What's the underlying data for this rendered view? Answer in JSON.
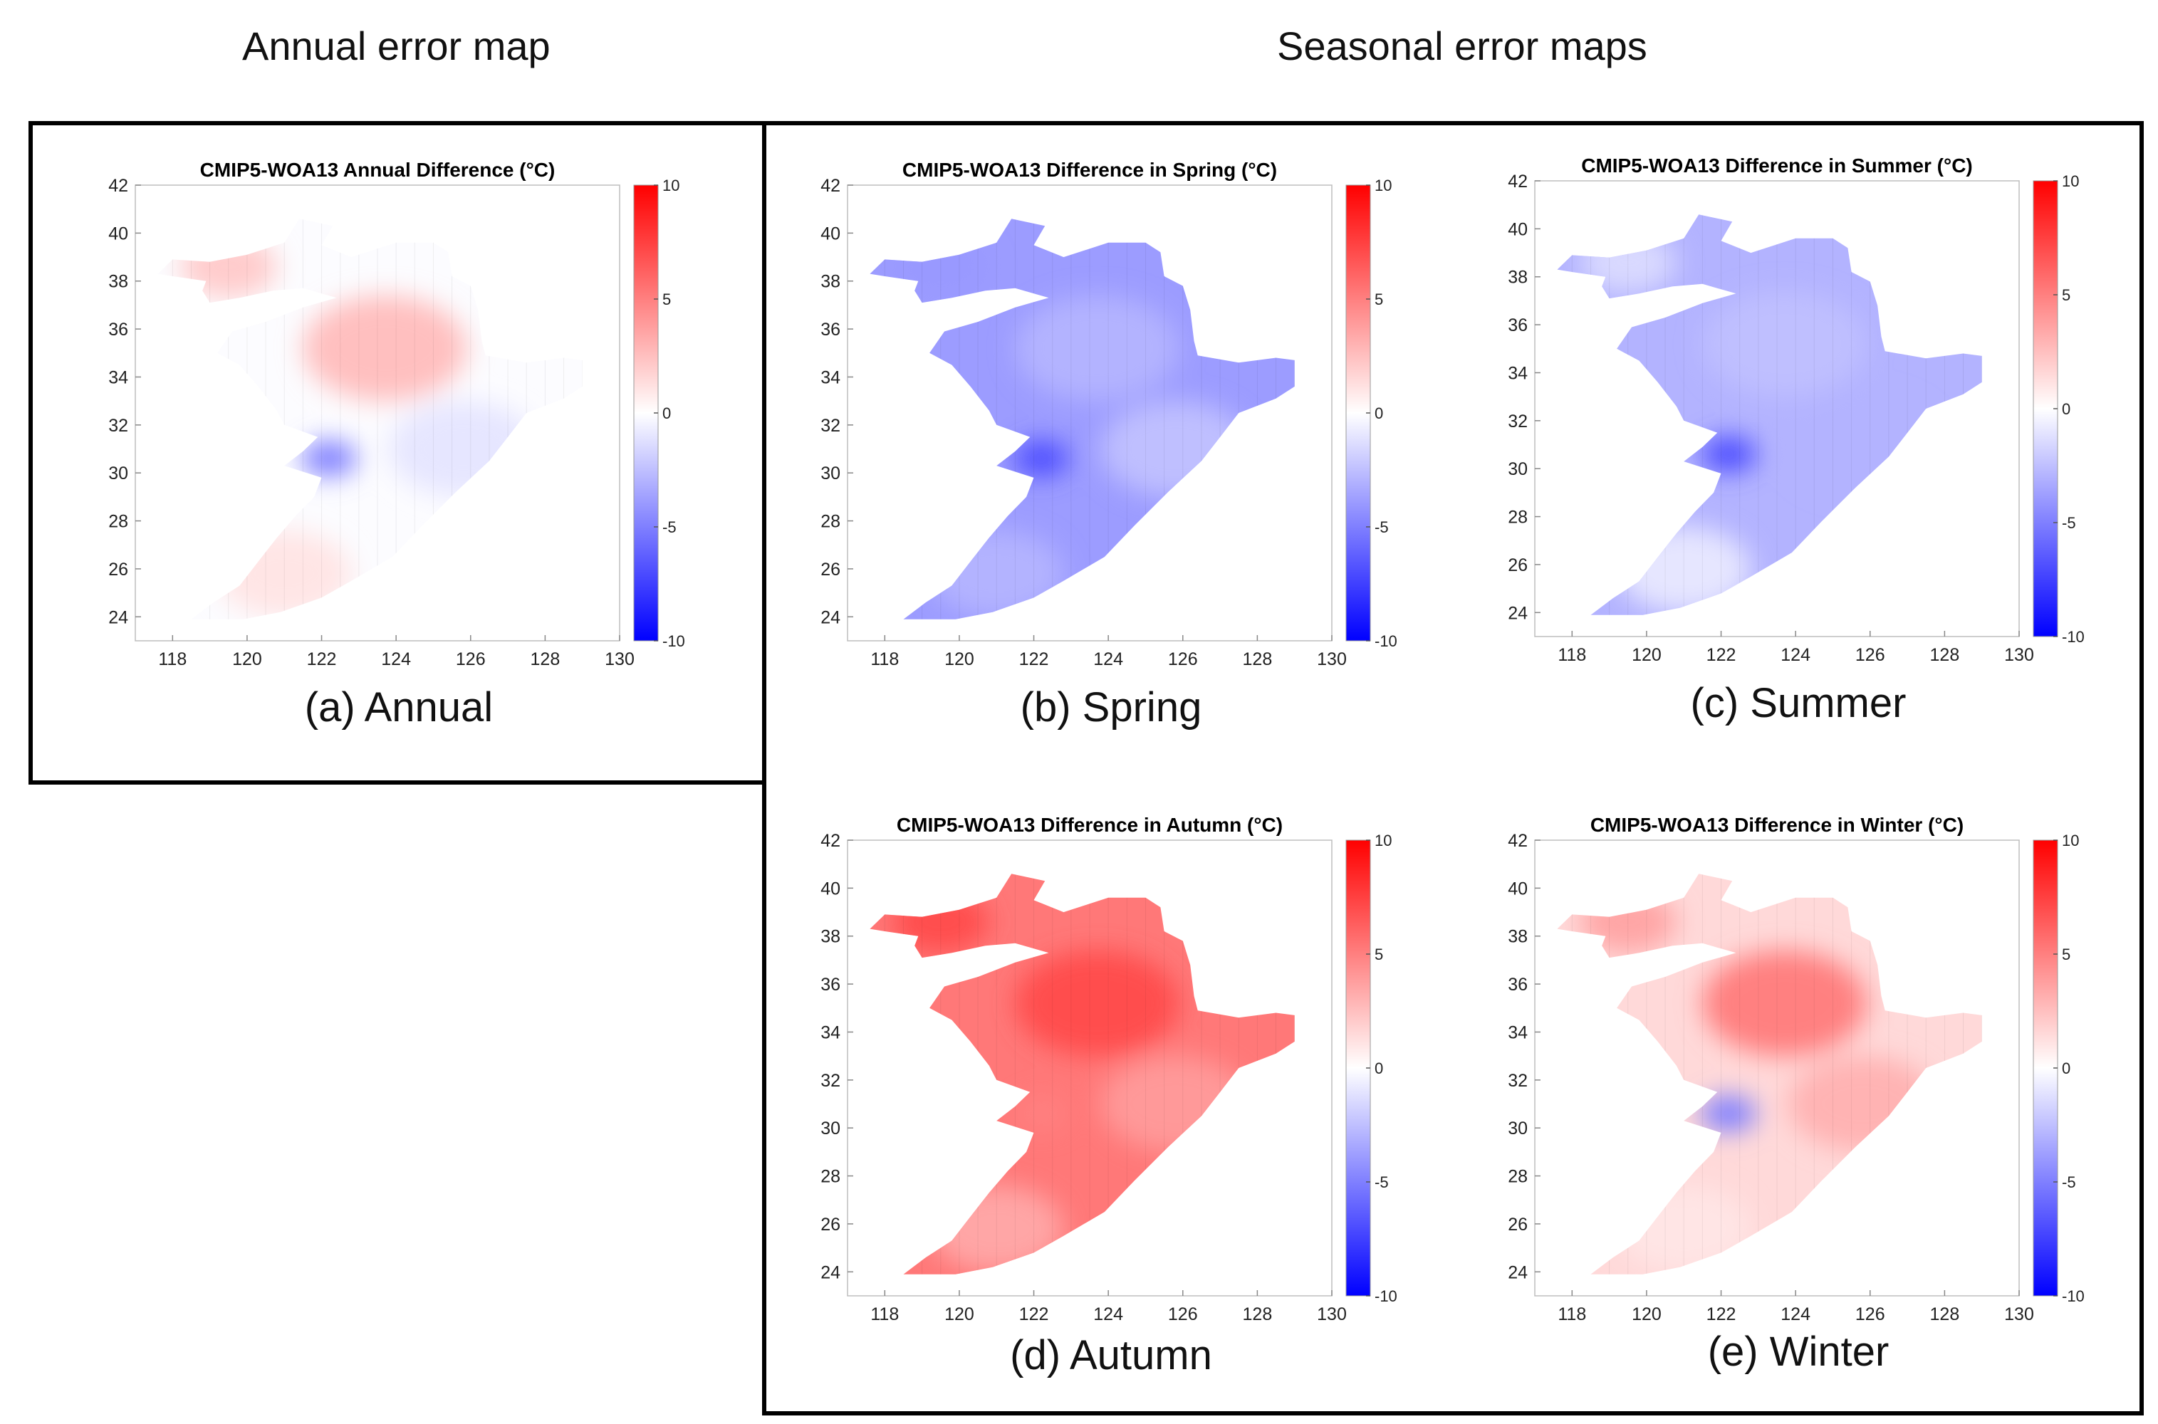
{
  "headers": {
    "annual": "Annual error map",
    "seasonal": "Seasonal error maps"
  },
  "chart_data": [
    {
      "type": "heatmap",
      "id": "annual",
      "title": "CMIP5-WOA13 Annual Difference (°C)",
      "caption": "(a) Annual",
      "xticks": [
        "118",
        "120",
        "122",
        "124",
        "126",
        "128",
        "130"
      ],
      "yticks": [
        "24",
        "26",
        "28",
        "30",
        "32",
        "34",
        "36",
        "38",
        "40",
        "42"
      ],
      "xlim": [
        117,
        130
      ],
      "ylim": [
        23,
        42
      ],
      "colorbar": {
        "range": [
          -10,
          10
        ],
        "ticks": [
          "10",
          "5",
          "0",
          "-5",
          "-10"
        ],
        "colors": [
          "#0000ff",
          "#ffffff",
          "#ff0000"
        ]
      },
      "region_values": {
        "bohai": 2,
        "yellow_sea": 2.5,
        "east_sea": -1,
        "coast_trough": -5,
        "south_coast": 1
      }
    },
    {
      "type": "heatmap",
      "id": "spring",
      "title": "CMIP5-WOA13 Difference in Spring (°C)",
      "caption": "(b) Spring",
      "xticks": [
        "118",
        "120",
        "122",
        "124",
        "126",
        "128",
        "130"
      ],
      "yticks": [
        "24",
        "26",
        "28",
        "30",
        "32",
        "34",
        "36",
        "38",
        "40",
        "42"
      ],
      "xlim": [
        117,
        130
      ],
      "ylim": [
        23,
        42
      ],
      "colorbar": {
        "range": [
          -10,
          10
        ],
        "ticks": [
          "10",
          "5",
          "0",
          "-5",
          "-10"
        ],
        "colors": [
          "#0000ff",
          "#ffffff",
          "#ff0000"
        ]
      },
      "region_values": {
        "bohai": -4,
        "yellow_sea": -3,
        "east_sea": -2.5,
        "coast_trough": -7,
        "south_coast": -3
      }
    },
    {
      "type": "heatmap",
      "id": "summer",
      "title": "CMIP5-WOA13 Difference in Summer (°C)",
      "caption": "(c) Summer",
      "xticks": [
        "118",
        "120",
        "122",
        "124",
        "126",
        "128",
        "130"
      ],
      "yticks": [
        "24",
        "26",
        "28",
        "30",
        "32",
        "34",
        "36",
        "38",
        "40",
        "42"
      ],
      "xlim": [
        117,
        130
      ],
      "ylim": [
        23,
        42
      ],
      "colorbar": {
        "range": [
          -10,
          10
        ],
        "ticks": [
          "10",
          "5",
          "0",
          "-5",
          "-10"
        ],
        "colors": [
          "#0000ff",
          "#ffffff",
          "#ff0000"
        ]
      },
      "region_values": {
        "bohai": -1.5,
        "yellow_sea": -2.5,
        "east_sea": -3,
        "coast_trough": -7,
        "south_coast": -1
      }
    },
    {
      "type": "heatmap",
      "id": "autumn",
      "title": "CMIP5-WOA13 Difference in Autumn (°C)",
      "caption": "(d) Autumn",
      "xticks": [
        "118",
        "120",
        "122",
        "124",
        "126",
        "128",
        "130"
      ],
      "yticks": [
        "24",
        "26",
        "28",
        "30",
        "32",
        "34",
        "36",
        "38",
        "40",
        "42"
      ],
      "xlim": [
        117,
        130
      ],
      "ylim": [
        23,
        42
      ],
      "colorbar": {
        "range": [
          -10,
          10
        ],
        "ticks": [
          "10",
          "5",
          "0",
          "-5",
          "-10"
        ],
        "colors": [
          "#0000ff",
          "#ffffff",
          "#ff0000"
        ]
      },
      "region_values": {
        "bohai": 7,
        "yellow_sea": 7,
        "east_sea": 4,
        "coast_trough": 5,
        "south_coast": 3.5
      }
    },
    {
      "type": "heatmap",
      "id": "winter",
      "title": "CMIP5-WOA13 Difference in Winter (°C)",
      "caption": "(e) Winter",
      "xticks": [
        "118",
        "120",
        "122",
        "124",
        "126",
        "128",
        "130"
      ],
      "yticks": [
        "24",
        "26",
        "28",
        "30",
        "32",
        "34",
        "36",
        "38",
        "40",
        "42"
      ],
      "xlim": [
        117,
        130
      ],
      "ylim": [
        23,
        42
      ],
      "colorbar": {
        "range": [
          -10,
          10
        ],
        "ticks": [
          "10",
          "5",
          "0",
          "-5",
          "-10"
        ],
        "colors": [
          "#0000ff",
          "#ffffff",
          "#ff0000"
        ]
      },
      "region_values": {
        "bohai": 3.5,
        "yellow_sea": 5,
        "east_sea": 3,
        "coast_trough": -5,
        "south_coast": 1
      }
    }
  ]
}
